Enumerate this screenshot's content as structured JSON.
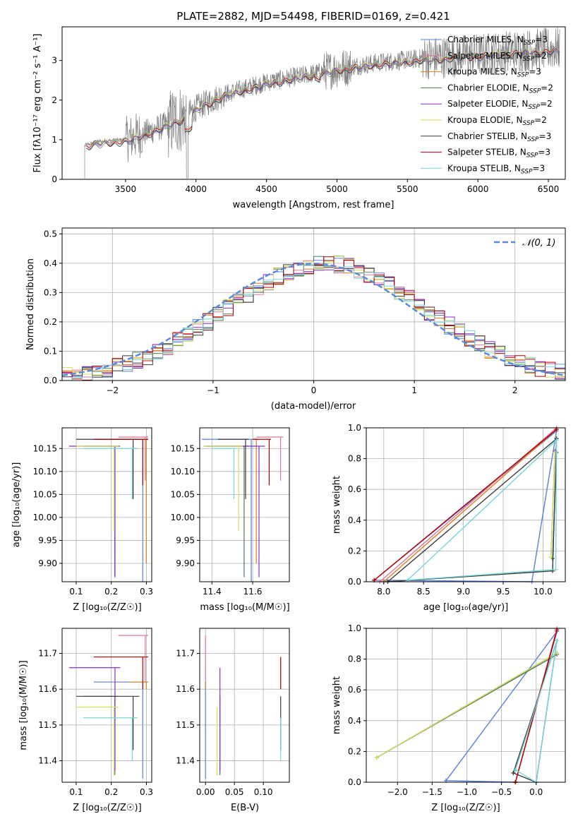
{
  "figure": {
    "title": "PLATE=2882, MJD=54498, FIBERID=0169, z=0.421"
  },
  "colors": {
    "Chabrier MILES": "#5b7fe0",
    "Salpeter MILES": "#e0789a",
    "Kroupa MILES": "#e07c1e",
    "Chabrier ELODIE": "#4f7a50",
    "Salpeter ELODIE": "#8a2bd0",
    "Kroupa ELODIE": "#d4e15a",
    "Chabrier STELIB": "#3a3a3a",
    "Salpeter STELIB": "#b00000",
    "Kroupa STELIB": "#78d4d8",
    "data": "#808080",
    "normal": "#5b8bd8"
  },
  "chart_data": [
    {
      "id": "spectrum",
      "type": "line",
      "title": "PLATE=2882, MJD=54498, FIBERID=0169, z=0.421",
      "xlabel": "wavelength [Angstrom, rest frame]",
      "ylabel": "Flux [fλ10⁻¹⁷ erg cm⁻² s⁻¹ A⁻¹]",
      "xlim": [
        3050,
        6620
      ],
      "ylim": [
        0,
        3.85
      ],
      "xticks": [
        "3500",
        "4000",
        "4500",
        "5000",
        "5500",
        "6000",
        "6500"
      ],
      "yticks": [
        "0",
        "1",
        "2",
        "3"
      ],
      "grid": false,
      "legend": "top-right",
      "legend_entries": [
        {
          "name": "Chabrier MILES",
          "nssp": "3"
        },
        {
          "name": "Salpeter MILES",
          "nssp": "2"
        },
        {
          "name": "Kroupa MILES",
          "nssp": "3"
        },
        {
          "name": "Chabrier ELODIE",
          "nssp": "2"
        },
        {
          "name": "Salpeter ELODIE",
          "nssp": "2"
        },
        {
          "name": "Kroupa ELODIE",
          "nssp": "2"
        },
        {
          "name": "Chabrier STELIB",
          "nssp": "3"
        },
        {
          "name": "Salpeter STELIB",
          "nssp": "3"
        },
        {
          "name": "Kroupa STELIB",
          "nssp": "3"
        }
      ],
      "continuum_knots": [
        [
          3210,
          0.85
        ],
        [
          3300,
          0.95
        ],
        [
          3500,
          1.0
        ],
        [
          3700,
          1.25
        ],
        [
          3900,
          1.55
        ],
        [
          4000,
          1.8
        ],
        [
          4200,
          2.15
        ],
        [
          4500,
          2.45
        ],
        [
          4800,
          2.65
        ],
        [
          5000,
          2.8
        ],
        [
          5300,
          2.95
        ],
        [
          5600,
          3.05
        ],
        [
          6000,
          3.15
        ],
        [
          6300,
          3.25
        ],
        [
          6580,
          3.3
        ]
      ]
    },
    {
      "id": "residuals",
      "type": "line",
      "xlabel": "(data-model)/error",
      "ylabel": "Normed distribution",
      "xlim": [
        -2.5,
        2.5
      ],
      "ylim": [
        0,
        0.52
      ],
      "xticks": [
        "−2",
        "−1",
        "0",
        "1",
        "2"
      ],
      "yticks": [
        "0.0",
        "0.1",
        "0.2",
        "0.3",
        "0.4",
        "0.5"
      ],
      "grid": true,
      "legend": "top-right",
      "legend_label": "𝒩(0, 1)"
    },
    {
      "id": "age_vs_Z",
      "type": "scatter",
      "xlabel": "Z [log₁₀(Z/Z☉)]",
      "ylabel": "age  [log₁₀(age/yr)]",
      "xlim": [
        0.06,
        0.315
      ],
      "ylim": [
        9.86,
        10.195
      ],
      "xticks": [
        "0.1",
        "0.2",
        "0.3"
      ],
      "yticks": [
        "9.90",
        "9.95",
        "10.00",
        "10.05",
        "10.10",
        "10.15"
      ],
      "grid": true
    },
    {
      "id": "age_vs_mass",
      "type": "scatter",
      "xlabel": "mass [log₁₀(M/M☉)]",
      "ylabel": "",
      "xlim": [
        11.34,
        11.78
      ],
      "ylim": [
        9.86,
        10.195
      ],
      "xticks": [
        "11.4",
        "11.6"
      ],
      "yticks": [
        "9.90",
        "9.95",
        "10.00",
        "10.05",
        "10.10",
        "10.15"
      ],
      "grid": true
    },
    {
      "id": "weight_vs_age",
      "type": "line",
      "xlabel": "age  [log₁₀(age/yr)]",
      "ylabel": "mass weight",
      "xlim": [
        7.78,
        10.28
      ],
      "ylim": [
        0,
        1.0
      ],
      "xticks": [
        "8.0",
        "8.5",
        "9.0",
        "9.5",
        "10.0"
      ],
      "yticks": [
        "0.0",
        "0.2",
        "0.4",
        "0.6",
        "0.8",
        "1.0"
      ],
      "grid": true,
      "series": [
        {
          "key": "Chabrier MILES",
          "x": [
            7.88,
            9.86,
            10.17,
            7.88
          ],
          "y": [
            0.01,
            0.0,
            0.98,
            0.01
          ]
        },
        {
          "key": "Salpeter MILES",
          "x": [
            7.95,
            10.17,
            7.95
          ],
          "y": [
            0.0,
            1.0,
            0.0
          ]
        },
        {
          "key": "Kroupa MILES",
          "x": [
            8.0,
            10.17,
            8.0
          ],
          "y": [
            0.0,
            0.99,
            0.0
          ]
        },
        {
          "key": "Chabrier ELODIE",
          "x": [
            10.12,
            10.17,
            10.12
          ],
          "y": [
            0.15,
            0.84,
            0.15
          ]
        },
        {
          "key": "Salpeter ELODIE",
          "x": [
            10.1,
            10.15,
            10.1
          ],
          "y": [
            0.16,
            0.85,
            0.16
          ]
        },
        {
          "key": "Kroupa ELODIE",
          "x": [
            10.1,
            10.15,
            10.1
          ],
          "y": [
            0.16,
            0.84,
            0.16
          ]
        },
        {
          "key": "Chabrier STELIB",
          "x": [
            8.05,
            10.12,
            10.17,
            8.05
          ],
          "y": [
            0.0,
            0.07,
            0.93,
            0.0
          ]
        },
        {
          "key": "Salpeter STELIB",
          "x": [
            7.88,
            10.17,
            7.88
          ],
          "y": [
            0.01,
            0.99,
            0.01
          ]
        },
        {
          "key": "Kroupa STELIB",
          "x": [
            8.3,
            10.16,
            10.17,
            8.3
          ],
          "y": [
            0.01,
            0.08,
            0.92,
            0.01
          ]
        }
      ]
    },
    {
      "id": "mass_vs_Z",
      "type": "scatter",
      "xlabel": "Z [log₁₀(Z/Z☉)]",
      "ylabel": "mass [log₁₀(M/M☉)]",
      "xlim": [
        0.06,
        0.315
      ],
      "ylim": [
        11.34,
        11.77
      ],
      "xticks": [
        "0.1",
        "0.2",
        "0.3"
      ],
      "yticks": [
        "11.4",
        "11.5",
        "11.6",
        "11.7"
      ],
      "grid": true
    },
    {
      "id": "mass_vs_ebv",
      "type": "scatter",
      "xlabel": "E(B-V)",
      "ylabel": "",
      "xlim": [
        -0.01,
        0.145
      ],
      "ylim": [
        11.34,
        11.77
      ],
      "xticks": [
        "0.00",
        "0.05",
        "0.10"
      ],
      "yticks": [
        "11.4",
        "11.5",
        "11.6",
        "11.7"
      ],
      "grid": true
    },
    {
      "id": "weight_vs_Z",
      "type": "line",
      "xlabel": "Z [log₁₀(Z/Z☉)]",
      "ylabel": "mass weight",
      "xlim": [
        -2.45,
        0.42
      ],
      "ylim": [
        0,
        1.0
      ],
      "xticks": [
        "−2.0",
        "−1.5",
        "−1.0",
        "−0.5",
        "0.0"
      ],
      "yticks": [
        "0.0",
        "0.2",
        "0.4",
        "0.6",
        "0.8",
        "1.0"
      ],
      "grid": true,
      "series": [
        {
          "key": "Chabrier MILES",
          "x": [
            -1.3,
            -0.3,
            0.3,
            -1.3
          ],
          "y": [
            0.01,
            0.0,
            0.98,
            0.01
          ]
        },
        {
          "key": "Salpeter MILES",
          "x": [
            -0.3,
            0.3,
            -0.3
          ],
          "y": [
            0.0,
            1.0,
            0.0
          ]
        },
        {
          "key": "Kroupa MILES",
          "x": [
            -0.3,
            0.3,
            -0.3
          ],
          "y": [
            0.0,
            0.99,
            0.0
          ]
        },
        {
          "key": "Chabrier ELODIE",
          "x": [
            -2.3,
            0.3,
            -2.3
          ],
          "y": [
            0.16,
            0.83,
            0.16
          ]
        },
        {
          "key": "Salpeter ELODIE",
          "x": [
            -2.3,
            0.3,
            -2.3
          ],
          "y": [
            0.16,
            0.84,
            0.16
          ]
        },
        {
          "key": "Kroupa ELODIE",
          "x": [
            -2.3,
            0.3,
            -2.3
          ],
          "y": [
            0.16,
            0.84,
            0.16
          ]
        },
        {
          "key": "Chabrier STELIB",
          "x": [
            -0.33,
            0.0,
            0.3,
            -0.33
          ],
          "y": [
            0.06,
            0.0,
            0.92,
            0.06
          ]
        },
        {
          "key": "Salpeter STELIB",
          "x": [
            -0.3,
            0.3,
            -0.3
          ],
          "y": [
            0.0,
            0.99,
            0.0
          ]
        },
        {
          "key": "Kroupa STELIB",
          "x": [
            -0.3,
            0.0,
            0.3,
            -0.3
          ],
          "y": [
            0.08,
            0.0,
            0.92,
            0.08
          ]
        }
      ]
    }
  ],
  "fits": [
    {
      "key": "Chabrier MILES",
      "ages": [
        10.17,
        9.86
      ],
      "Z": [
        0.15,
        0.305
      ],
      "mass": [
        11.35,
        11.62
      ],
      "ebv": 0.0
    },
    {
      "key": "Salpeter MILES",
      "ages": [
        10.175,
        10.08
      ],
      "Z": [
        0.22,
        0.305
      ],
      "mass": [
        11.62,
        11.75
      ],
      "ebv": 0.0
    },
    {
      "key": "Kroupa MILES",
      "ages": [
        10.17,
        9.9
      ],
      "Z": [
        0.25,
        0.305
      ],
      "mass": [
        11.6,
        11.62
      ],
      "ebv": 0.0
    },
    {
      "key": "Chabrier ELODIE",
      "ages": [
        10.155,
        9.87
      ],
      "Z": [
        0.12,
        0.22
      ],
      "mass": [
        11.36,
        11.58
      ],
      "ebv": 0.025
    },
    {
      "key": "Salpeter ELODIE",
      "ages": [
        10.155,
        9.87
      ],
      "Z": [
        0.08,
        0.225
      ],
      "mass": [
        11.37,
        11.66
      ],
      "ebv": 0.025
    },
    {
      "key": "Kroupa ELODIE",
      "ages": [
        10.155,
        9.97
      ],
      "Z": [
        0.1,
        0.22
      ],
      "mass": [
        11.36,
        11.55
      ],
      "ebv": 0.02
    },
    {
      "key": "Chabrier STELIB",
      "ages": [
        10.17,
        10.04
      ],
      "Z": [
        0.1,
        0.28
      ],
      "mass": [
        11.43,
        11.58
      ],
      "ebv": 0.13
    },
    {
      "key": "Salpeter STELIB",
      "ages": [
        10.17,
        10.07
      ],
      "Z": [
        0.15,
        0.305
      ],
      "mass": [
        11.6,
        11.69
      ],
      "ebv": 0.13
    },
    {
      "key": "Kroupa STELIB",
      "ages": [
        10.15,
        10.04
      ],
      "Z": [
        0.12,
        0.275
      ],
      "mass": [
        11.4,
        11.52
      ],
      "ebv": 0.13
    }
  ]
}
